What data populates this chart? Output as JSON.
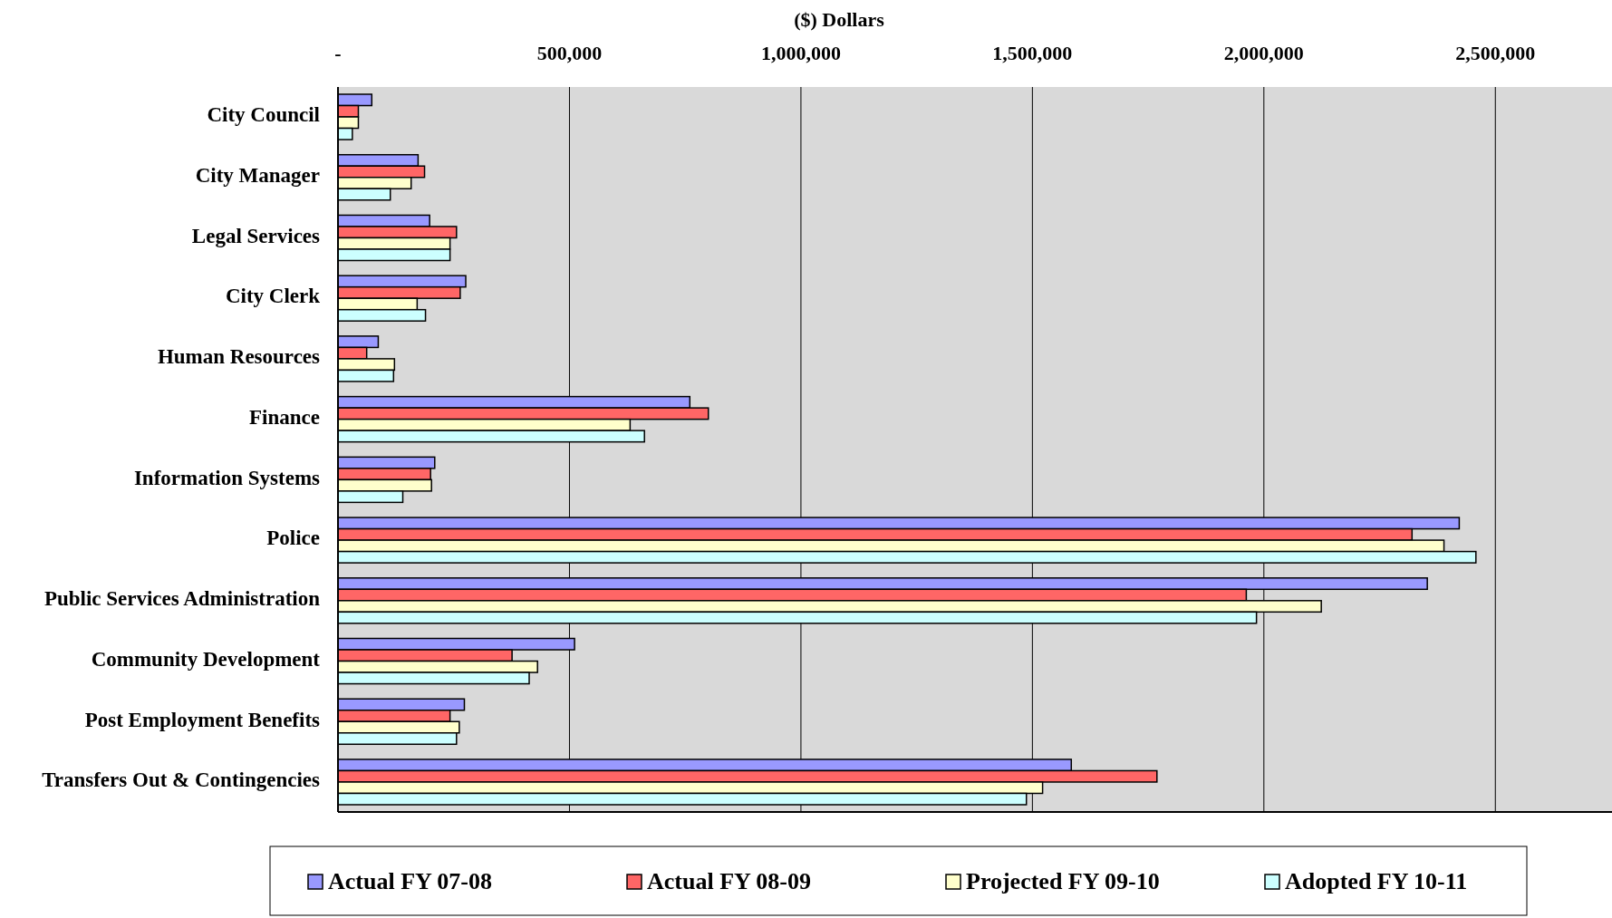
{
  "chart_data": {
    "type": "bar",
    "orientation": "horizontal",
    "xlabel": "($) Dollars",
    "categories": [
      "City Council",
      "City Manager",
      "Legal Services",
      "City Clerk",
      "Human Resources",
      "Finance",
      "Information Systems",
      "Police",
      "Public Services Administration",
      "Community Development",
      "Post Employment Benefits",
      "Transfers Out & Contingencies"
    ],
    "series": [
      {
        "name": "Actual FY 07-08",
        "color": "#9999ff",
        "values": [
          73000,
          173000,
          198000,
          276000,
          87000,
          760000,
          209000,
          2422000,
          2353000,
          511000,
          273000,
          1584000
        ]
      },
      {
        "name": "Actual FY 08-09",
        "color": "#ff6666",
        "values": [
          44000,
          187000,
          256000,
          264000,
          62000,
          800000,
          200000,
          2320000,
          1962000,
          376000,
          242000,
          1769000
        ]
      },
      {
        "name": "Projected FY 09-10",
        "color": "#ffffcc",
        "values": [
          44000,
          158000,
          242000,
          171000,
          122000,
          631000,
          202000,
          2389000,
          2124000,
          431000,
          262000,
          1522000
        ]
      },
      {
        "name": "Adopted FY 10-11",
        "color": "#ccffff",
        "values": [
          31000,
          113000,
          242000,
          189000,
          120000,
          662000,
          140000,
          2458000,
          1984000,
          413000,
          256000,
          1487000
        ]
      }
    ],
    "xlim": [
      0,
      2750000
    ],
    "xticks": [
      {
        "value": 0,
        "label": "-"
      },
      {
        "value": 500000,
        "label": "500,000"
      },
      {
        "value": 1000000,
        "label": "1,000,000"
      },
      {
        "value": 1500000,
        "label": "1,500,000"
      },
      {
        "value": 2000000,
        "label": "2,000,000"
      },
      {
        "value": 2500000,
        "label": "2,500,000"
      }
    ],
    "grid": "x",
    "legend": "bottom"
  }
}
